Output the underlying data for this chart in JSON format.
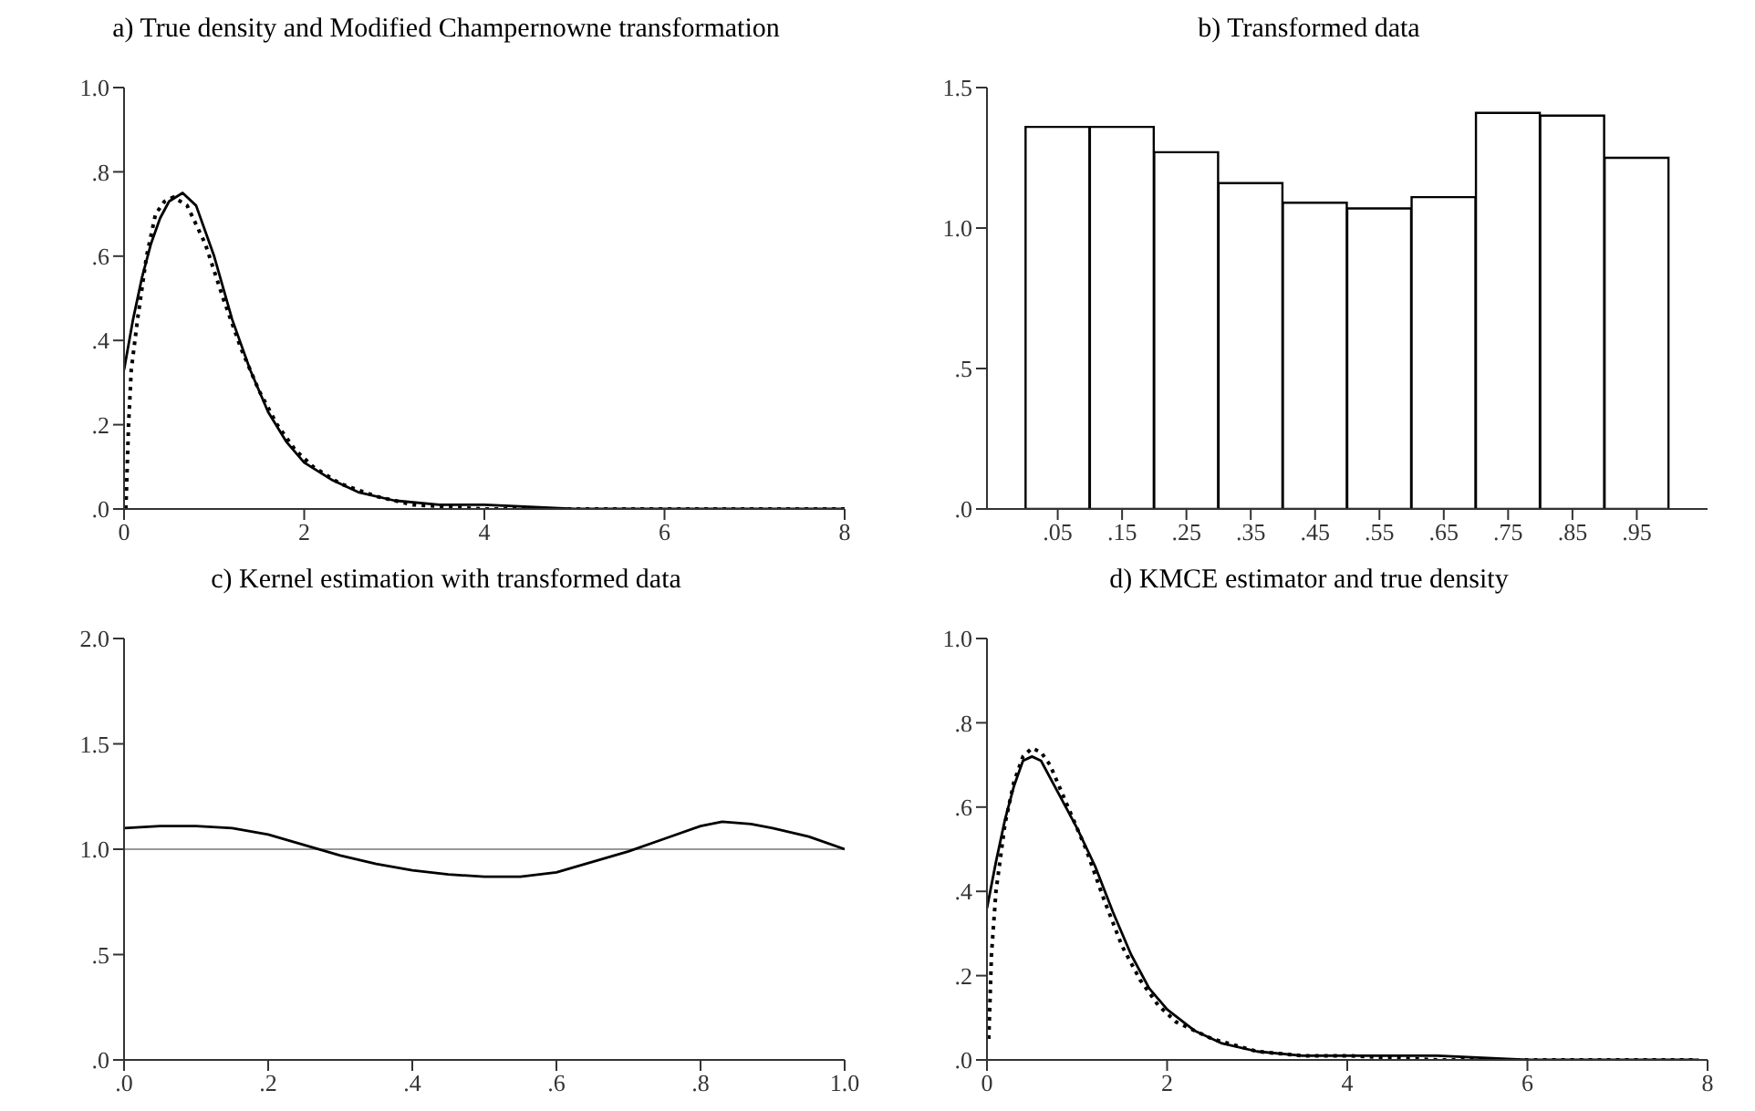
{
  "chart_data": [
    {
      "type": "line",
      "title": "a) True density and Modified Champernowne transformation",
      "xlim": [
        0,
        8
      ],
      "xticks": [
        0,
        2,
        4,
        6,
        8
      ],
      "ylim": [
        0,
        1
      ],
      "yticks": [
        {
          "value": 0,
          "label": ".0"
        },
        {
          "value": 0.2,
          "label": ".2"
        },
        {
          "value": 0.4,
          "label": ".4"
        },
        {
          "value": 0.6,
          "label": ".6"
        },
        {
          "value": 0.8,
          "label": ".8"
        },
        {
          "value": 1,
          "label": "1.0"
        }
      ],
      "marker": "none",
      "series": [
        {
          "color": "#000000",
          "line_style": "solid",
          "x": [
            0,
            0.1,
            0.2,
            0.3,
            0.4,
            0.5,
            0.65,
            0.8,
            1.0,
            1.2,
            1.4,
            1.6,
            1.8,
            2.0,
            2.3,
            2.6,
            3,
            3.5,
            4,
            5,
            6,
            8
          ],
          "values": [
            0.33,
            0.45,
            0.55,
            0.63,
            0.69,
            0.73,
            0.75,
            0.72,
            0.6,
            0.45,
            0.33,
            0.23,
            0.16,
            0.11,
            0.07,
            0.04,
            0.02,
            0.01,
            0.01,
            0.0,
            0.0,
            0.0
          ]
        },
        {
          "color": "#000000",
          "line_style": "dotted",
          "x": [
            0.02,
            0.05,
            0.08,
            0.15,
            0.25,
            0.35,
            0.45,
            0.55,
            0.7,
            0.9,
            1.1,
            1.3,
            1.5,
            1.7,
            1.9,
            2.1,
            2.4,
            2.8,
            3.2,
            4,
            5,
            6,
            8
          ],
          "values": [
            0.0,
            0.2,
            0.33,
            0.45,
            0.6,
            0.7,
            0.73,
            0.74,
            0.72,
            0.63,
            0.5,
            0.38,
            0.28,
            0.2,
            0.14,
            0.1,
            0.06,
            0.03,
            0.01,
            0.0,
            0.0,
            0.0,
            0.0
          ]
        }
      ]
    },
    {
      "type": "histogram",
      "title": "b) Transformed data",
      "bins": [
        0,
        0.1,
        0.2,
        0.3,
        0.4,
        0.5,
        0.6,
        0.7,
        0.8,
        0.9,
        1.0
      ],
      "values": [
        1.36,
        1.36,
        1.27,
        1.16,
        1.09,
        1.07,
        1.11,
        1.41,
        1.4,
        1.25
      ],
      "color": "#ffffff",
      "xlim": [
        -0.06,
        1.06
      ],
      "xticks": [
        {
          "value": 0.05,
          "label": ".05"
        },
        {
          "value": 0.15,
          "label": ".15"
        },
        {
          "value": 0.25,
          "label": ".25"
        },
        {
          "value": 0.35,
          "label": ".35"
        },
        {
          "value": 0.45,
          "label": ".45"
        },
        {
          "value": 0.55,
          "label": ".55"
        },
        {
          "value": 0.65,
          "label": ".65"
        },
        {
          "value": 0.75,
          "label": ".75"
        },
        {
          "value": 0.85,
          "label": ".85"
        },
        {
          "value": 0.95,
          "label": ".95"
        }
      ],
      "ylim": [
        0,
        1.5
      ],
      "yticks": [
        {
          "value": 0,
          "label": ".0"
        },
        {
          "value": 0.5,
          "label": ".5"
        },
        {
          "value": 1,
          "label": "1.0"
        },
        {
          "value": 1.5,
          "label": "1.5"
        }
      ]
    },
    {
      "type": "line",
      "title": "c) Kernel estimation with transformed data",
      "xlim": [
        0,
        1
      ],
      "xticks": [
        {
          "value": 0,
          "label": ".0"
        },
        {
          "value": 0.2,
          "label": ".2"
        },
        {
          "value": 0.4,
          "label": ".4"
        },
        {
          "value": 0.6,
          "label": ".6"
        },
        {
          "value": 0.8,
          "label": ".8"
        },
        {
          "value": 1,
          "label": "1.0"
        }
      ],
      "ylim": [
        0,
        2
      ],
      "yticks": [
        {
          "value": 0,
          "label": ".0"
        },
        {
          "value": 0.5,
          "label": ".5"
        },
        {
          "value": 1,
          "label": "1.0"
        },
        {
          "value": 1.5,
          "label": "1.5"
        },
        {
          "value": 2,
          "label": "2.0"
        }
      ],
      "marker": "none",
      "ref_lines": [
        {
          "axis": "y",
          "value": 1,
          "color": "#999999"
        }
      ],
      "series": [
        {
          "color": "#000000",
          "line_style": "solid",
          "x": [
            0,
            0.05,
            0.1,
            0.15,
            0.2,
            0.25,
            0.3,
            0.35,
            0.4,
            0.45,
            0.5,
            0.55,
            0.6,
            0.65,
            0.7,
            0.75,
            0.8,
            0.83,
            0.87,
            0.9,
            0.95,
            1.0
          ],
          "values": [
            1.1,
            1.11,
            1.11,
            1.1,
            1.07,
            1.02,
            0.97,
            0.93,
            0.9,
            0.88,
            0.87,
            0.87,
            0.89,
            0.94,
            0.99,
            1.05,
            1.11,
            1.13,
            1.12,
            1.1,
            1.06,
            1.0
          ]
        }
      ]
    },
    {
      "type": "line",
      "title": "d) KMCE estimator and true density",
      "xlim": [
        0,
        8
      ],
      "xticks": [
        0,
        2,
        4,
        6,
        8
      ],
      "ylim": [
        0,
        1
      ],
      "yticks": [
        {
          "value": 0,
          "label": ".0"
        },
        {
          "value": 0.2,
          "label": ".2"
        },
        {
          "value": 0.4,
          "label": ".4"
        },
        {
          "value": 0.6,
          "label": ".6"
        },
        {
          "value": 0.8,
          "label": ".8"
        },
        {
          "value": 1,
          "label": "1.0"
        }
      ],
      "marker": "none",
      "series": [
        {
          "color": "#000000",
          "line_style": "solid",
          "x": [
            0,
            0.1,
            0.2,
            0.3,
            0.4,
            0.5,
            0.6,
            0.8,
            1.0,
            1.2,
            1.4,
            1.6,
            1.8,
            2.0,
            2.3,
            2.6,
            3,
            3.5,
            4,
            5,
            6,
            7.9
          ],
          "values": [
            0.36,
            0.47,
            0.57,
            0.65,
            0.71,
            0.72,
            0.71,
            0.63,
            0.55,
            0.46,
            0.35,
            0.25,
            0.17,
            0.12,
            0.07,
            0.04,
            0.02,
            0.01,
            0.01,
            0.01,
            0.0,
            0.0
          ]
        },
        {
          "color": "#000000",
          "line_style": "dotted",
          "x": [
            0.02,
            0.05,
            0.1,
            0.2,
            0.3,
            0.4,
            0.5,
            0.6,
            0.7,
            0.9,
            1.1,
            1.3,
            1.5,
            1.7,
            1.9,
            2.1,
            2.5,
            3,
            3.5,
            4,
            5,
            6,
            7.9
          ],
          "values": [
            0.05,
            0.25,
            0.4,
            0.56,
            0.66,
            0.72,
            0.74,
            0.73,
            0.7,
            0.6,
            0.5,
            0.38,
            0.27,
            0.19,
            0.13,
            0.09,
            0.05,
            0.02,
            0.01,
            0.01,
            0.0,
            0.0,
            0.0
          ]
        }
      ]
    }
  ]
}
